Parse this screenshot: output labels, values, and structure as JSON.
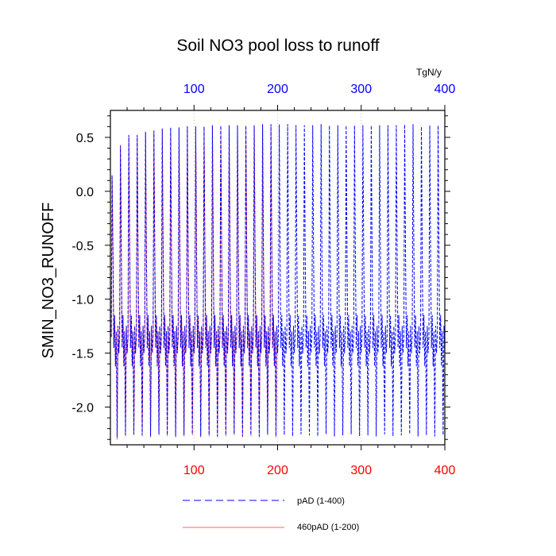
{
  "chart_data": {
    "type": "line",
    "title": "Soil NO3 pool loss to runoff",
    "ylabel": "SMIN_NO3_RUNOFF",
    "xlabel": "",
    "top_axis_unit": "TgN/y",
    "xlim": [
      0,
      400
    ],
    "ylim": [
      -2.35,
      0.75
    ],
    "x_ticks": [
      100,
      200,
      300,
      400
    ],
    "x_tick_labels": [
      "100",
      "200",
      "300",
      "400"
    ],
    "top_x_ticks": [
      100,
      200,
      300,
      400
    ],
    "top_x_tick_labels": [
      "100",
      "200",
      "300",
      "400"
    ],
    "y_ticks": [
      0.5,
      0.0,
      -0.5,
      -1.0,
      -1.5,
      -2.0
    ],
    "y_tick_labels": [
      "0.5",
      "0.0",
      "-0.5",
      "-1.0",
      "-1.5",
      "-2.0"
    ],
    "grid": "vertical dotted at x ticks",
    "legend_position": "bottom",
    "series": [
      {
        "name": "pAD (1-400)",
        "color": "#0000ff",
        "style": "dashed",
        "x_range": [
          1,
          400
        ],
        "description": "oscillates roughly every 10 years between about -2.27 and 0.55",
        "cycle_peaks": [
          0.15,
          0.42,
          0.52,
          0.52,
          0.55,
          0.56,
          0.58,
          0.59,
          0.59,
          0.6,
          0.6,
          0.6,
          0.61,
          0.61,
          0.61,
          0.61,
          0.61,
          0.61,
          0.62,
          0.62,
          0.62,
          0.62,
          0.61,
          0.61,
          0.61,
          0.62,
          0.61,
          0.61,
          0.61,
          0.61,
          0.61,
          0.61,
          0.61,
          0.61,
          0.61,
          0.62,
          0.62,
          0.6,
          0.61,
          0.61
        ],
        "cycle_troughs": [
          -2.28,
          -2.26,
          -2.25,
          -2.26,
          -2.27,
          -2.25,
          -2.26,
          -2.27,
          -2.26,
          -2.25,
          -2.27,
          -2.26,
          -2.27,
          -2.26,
          -2.25,
          -2.27,
          -2.26,
          -2.27,
          -2.25,
          -2.27,
          -2.26,
          -2.27,
          -2.25,
          -2.26,
          -2.27,
          -2.25,
          -2.27,
          -2.26,
          -2.25,
          -2.27,
          -2.26,
          -2.27,
          -2.25,
          -2.27,
          -2.26,
          -2.25,
          -2.27,
          -2.26,
          -2.27,
          -2.26
        ]
      },
      {
        "name": "460pAD (1-200)",
        "color": "#ff0000",
        "style": "solid",
        "x_range": [
          1,
          200
        ],
        "description": "closely tracks the blue series over years 1-200",
        "cycle_peaks": [
          0.12,
          0.43,
          0.5,
          0.51,
          0.54,
          0.55,
          0.57,
          0.58,
          0.58,
          0.59,
          0.59,
          0.59,
          0.6,
          0.6,
          0.6,
          0.6,
          0.6,
          0.6,
          0.61,
          0.61
        ],
        "cycle_troughs": [
          -2.3,
          -2.27,
          -2.26,
          -2.27,
          -2.28,
          -2.26,
          -2.27,
          -2.28,
          -2.27,
          -2.26,
          -2.28,
          -2.27,
          -2.28,
          -2.27,
          -2.26,
          -2.28,
          -2.27,
          -2.28,
          -2.26,
          -2.28
        ]
      }
    ]
  }
}
